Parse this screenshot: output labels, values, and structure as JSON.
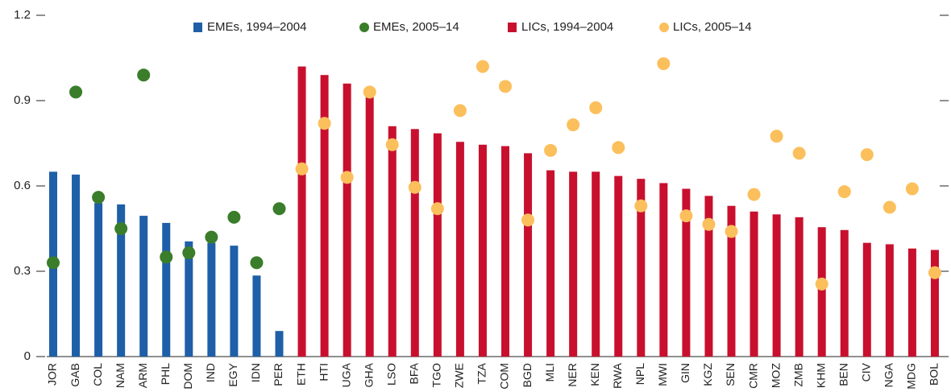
{
  "chart_data": {
    "type": "bar",
    "categories": [
      "JOR",
      "GAB",
      "COL",
      "NAM",
      "ARM",
      "PHL",
      "DOM",
      "IND",
      "EGY",
      "IDN",
      "PER",
      "ETH",
      "HTI",
      "UGA",
      "GHA",
      "LSO",
      "BFA",
      "TGO",
      "ZWE",
      "TZA",
      "COM",
      "BGD",
      "MLI",
      "NER",
      "KEN",
      "RWA",
      "NPL",
      "MWI",
      "GIN",
      "KGZ",
      "SEN",
      "CMR",
      "MOZ",
      "ZMB",
      "KHM",
      "BEN",
      "CIV",
      "NGA",
      "MDG",
      "BOL"
    ],
    "series": [
      {
        "name": "EMEs, 1994–2004",
        "color": "#1f5fa8",
        "style": "bar",
        "values": [
          0.65,
          0.64,
          0.54,
          0.535,
          0.495,
          0.47,
          0.405,
          0.4,
          0.39,
          0.285,
          0.09,
          null,
          null,
          null,
          null,
          null,
          null,
          null,
          null,
          null,
          null,
          null,
          null,
          null,
          null,
          null,
          null,
          null,
          null,
          null,
          null,
          null,
          null,
          null,
          null,
          null,
          null,
          null,
          null,
          null
        ]
      },
      {
        "name": "EMEs, 2005–14",
        "color": "#3a7d2a",
        "style": "dot",
        "values": [
          0.33,
          0.93,
          0.56,
          0.45,
          0.99,
          0.35,
          0.365,
          0.42,
          0.49,
          0.33,
          0.52,
          null,
          null,
          null,
          null,
          null,
          null,
          null,
          null,
          null,
          null,
          null,
          null,
          null,
          null,
          null,
          null,
          null,
          null,
          null,
          null,
          null,
          null,
          null,
          null,
          null,
          null,
          null,
          null,
          null
        ]
      },
      {
        "name": "LICs, 1994–2004",
        "color": "#c8102e",
        "style": "bar",
        "values": [
          null,
          null,
          null,
          null,
          null,
          null,
          null,
          null,
          null,
          null,
          null,
          1.02,
          0.99,
          0.96,
          0.935,
          0.81,
          0.8,
          0.785,
          0.755,
          0.745,
          0.74,
          0.715,
          0.655,
          0.65,
          0.65,
          0.635,
          0.625,
          0.61,
          0.59,
          0.565,
          0.53,
          0.51,
          0.5,
          0.49,
          0.455,
          0.445,
          0.4,
          0.395,
          0.38,
          0.375
        ]
      },
      {
        "name": "LICs, 2005–14",
        "color": "#fbbf5c",
        "style": "dot",
        "values": [
          null,
          null,
          null,
          null,
          null,
          null,
          null,
          null,
          null,
          null,
          null,
          0.66,
          0.82,
          0.63,
          0.93,
          0.745,
          0.595,
          0.52,
          0.865,
          1.02,
          0.95,
          0.48,
          0.725,
          0.815,
          0.875,
          0.735,
          0.53,
          1.03,
          0.495,
          0.465,
          0.44,
          0.57,
          0.775,
          0.715,
          0.255,
          0.58,
          0.71,
          0.525,
          0.59,
          0.295
        ]
      }
    ],
    "ylim": [
      0,
      1.2
    ],
    "yticks": [
      0,
      0.3,
      0.6,
      0.9,
      1.2
    ]
  }
}
